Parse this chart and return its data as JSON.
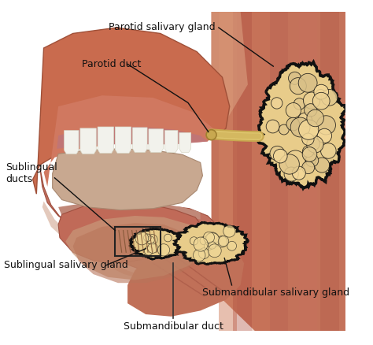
{
  "background_color": "#ffffff",
  "labels": {
    "parotid_salivary_gland": "Parotid salivary gland",
    "parotid_duct": "Parotid duct",
    "sublingual_ducts": "Sublingual\nducts",
    "sublingual_salivary_gland": "Sublingual salivary gland",
    "submandibular_salivary_gland": "Submandibular salivary gland",
    "submandibular_duct": "Submandibular duct"
  },
  "colors": {
    "neck_muscle": "#c4725a",
    "neck_stripe1": "#b5604a",
    "neck_stripe2": "#d08060",
    "face_outer": "#c96b4e",
    "face_inner": "#c87860",
    "cheek_inner": "#d4896e",
    "jaw_lower": "#c07060",
    "gum_upper": "#c07060",
    "gum_lower": "#c4877a",
    "teeth_white": "#f2f2ec",
    "teeth_edge": "#d8d8c8",
    "tongue": "#be6d5a",
    "floor_mouth": "#b8886e",
    "sublingual_region": "#c9967a",
    "gland_fill": "#e8cc8a",
    "gland_fill2": "#dfc080",
    "gland_outline": "#111111",
    "duct_fill": "#dfc070",
    "duct_outline": "#c0a040",
    "ann_line": "#111111",
    "text_color": "#111111",
    "jaw_bg": "#b8907a",
    "muscle_bg": "#c07055",
    "lower_jaw": "#c8a090"
  },
  "figsize": [
    4.74,
    4.38
  ],
  "dpi": 100
}
